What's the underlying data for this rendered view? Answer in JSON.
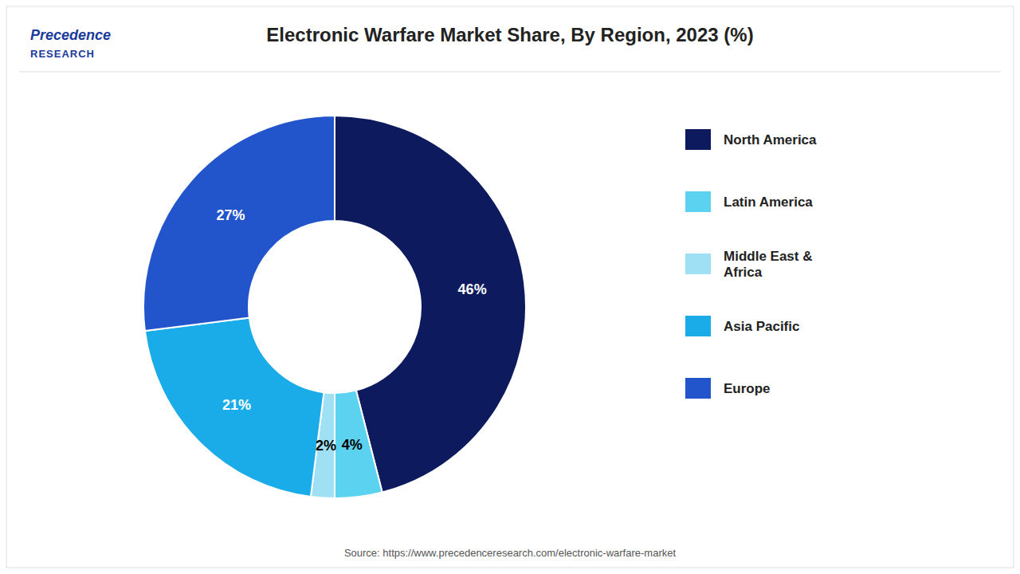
{
  "chart_data": {
    "type": "pie",
    "title": "Electronic Warfare Market Share, By Region, 2023 (%)",
    "categories": [
      "North America",
      "Latin America",
      "Middle East &\nAfrica",
      "Asia Pacific",
      "Europe"
    ],
    "values": [
      46,
      4,
      2,
      21,
      27
    ],
    "value_labels": [
      "46%",
      "4%",
      "2%",
      "21%",
      "27%"
    ],
    "colors": [
      "#0d1b5e",
      "#5bd3f0",
      "#a0e0f5",
      "#1aace8",
      "#2255cc"
    ],
    "data_labels": true,
    "legend": "right",
    "annotations": [
      "Precedence",
      "RESEARCH",
      "Source: https://www.precedenceresearch.com/electronic-warfare-market"
    ]
  }
}
